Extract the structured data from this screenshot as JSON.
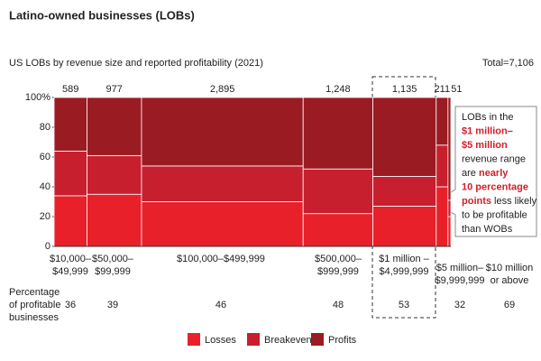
{
  "chart_data": {
    "type": "marimekko",
    "title": "Latino-owned businesses (LOBs)",
    "subtitle": "US LOBs by revenue size and reported profitability (2021)",
    "total_label": "Total=7,106",
    "categories": [
      [
        "$10,000–",
        "$49,999"
      ],
      [
        "$50,000–",
        "$99,999"
      ],
      [
        "$100,000–$499,999"
      ],
      [
        "$500,000–",
        "$999,999"
      ],
      [
        "$1 million –",
        "$4,999,999"
      ],
      [
        "$5 million–",
        "$9,999,999"
      ],
      [
        "$10 million",
        "or above"
      ]
    ],
    "widths": [
      589,
      977,
      2895,
      1248,
      1135,
      211,
      51
    ],
    "width_labels": [
      "589",
      "977",
      "2,895",
      "1,248",
      "1,135",
      "211",
      "51"
    ],
    "series": [
      {
        "name": "Losses",
        "color": "#e8202a",
        "values": [
          34,
          35,
          30,
          22,
          27,
          40,
          20
        ]
      },
      {
        "name": "Breakeven",
        "color": "#c81f2e",
        "values": [
          30,
          26,
          24,
          30,
          20,
          28,
          11
        ]
      },
      {
        "name": "Profits",
        "color": "#9b1b22",
        "values": [
          36,
          39,
          46,
          48,
          53,
          32,
          69
        ]
      }
    ],
    "row_label": [
      "Percentage",
      "of profitable",
      "businesses"
    ],
    "row_values": [
      36,
      39,
      46,
      48,
      53,
      32,
      69
    ],
    "ylim": [
      0,
      100
    ],
    "yticks": [
      0,
      20,
      40,
      60,
      80,
      {
        "value": 100,
        "label": "100%"
      }
    ],
    "callout": [
      [
        {
          "text": "LOBs in the",
          "bold": false
        }
      ],
      [
        {
          "text": "$1 million–",
          "bold": true
        }
      ],
      [
        {
          "text": "$5 million",
          "bold": true
        }
      ],
      [
        {
          "text": "revenue range",
          "bold": false
        }
      ],
      [
        {
          "text": "are ",
          "bold": false
        },
        {
          "text": "nearly",
          "bold": true
        }
      ],
      [
        {
          "text": "10 percentage",
          "bold": true
        }
      ],
      [
        {
          "text": "points",
          "bold": true
        },
        {
          "text": " less likely",
          "bold": false
        }
      ],
      [
        {
          "text": "to be profitable",
          "bold": false
        }
      ],
      [
        {
          "text": "than WOBs",
          "bold": false
        }
      ]
    ]
  }
}
